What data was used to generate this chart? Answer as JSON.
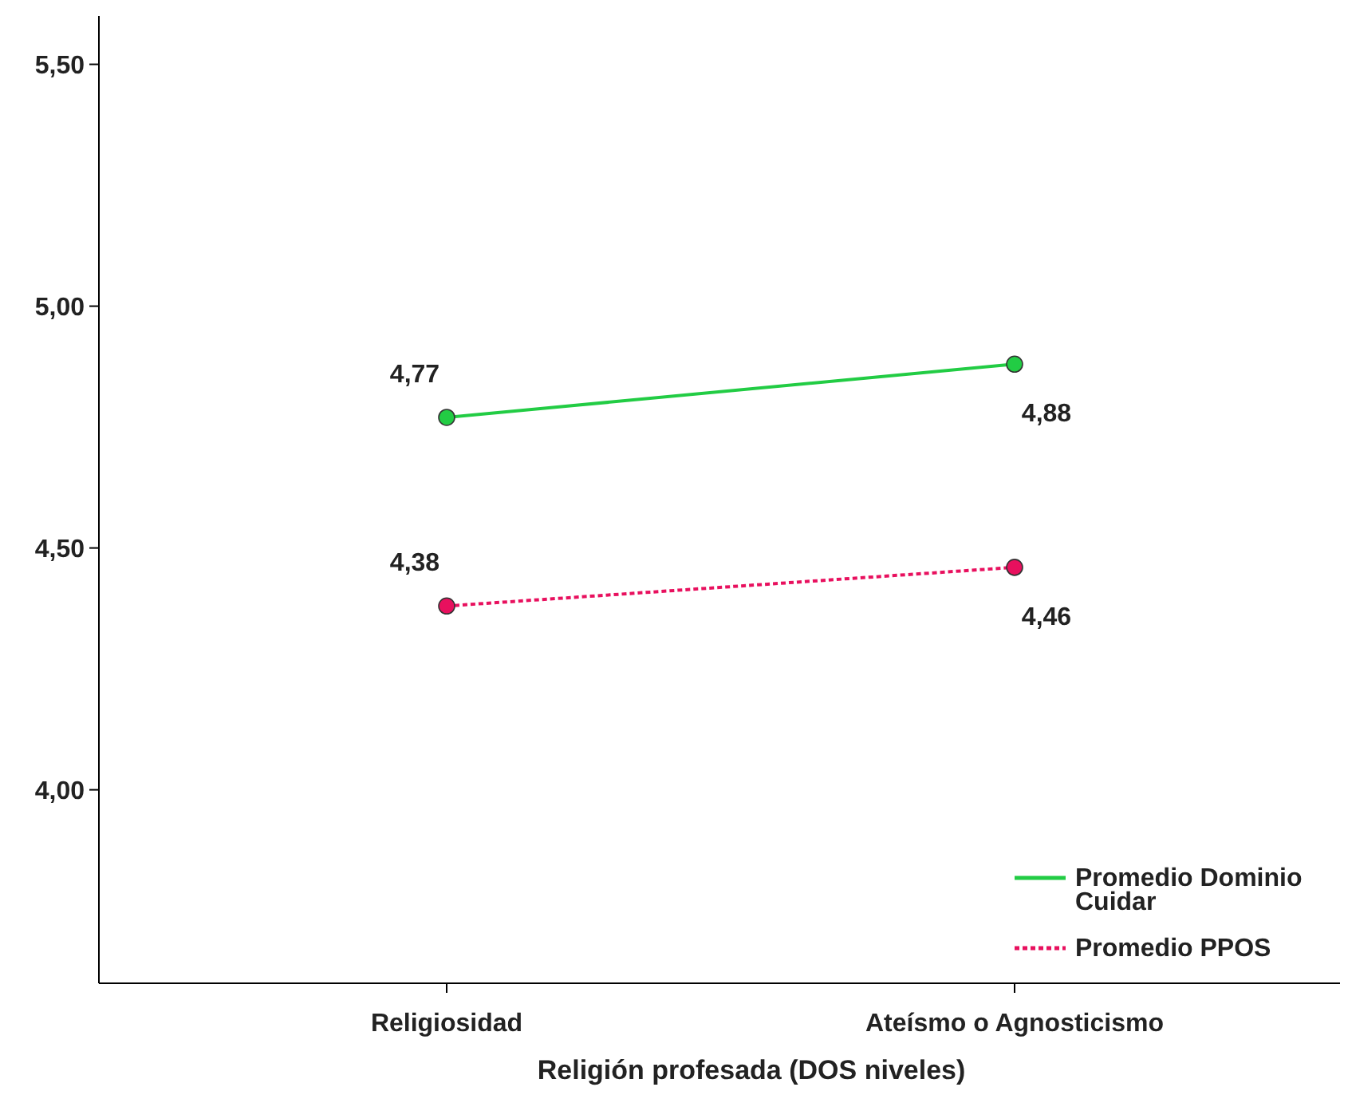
{
  "chart_data": {
    "type": "line",
    "xlabel": "Religión profesada (DOS niveles)",
    "categories": [
      "Religiosidad",
      "Ateísmo o Agnosticismo"
    ],
    "series": [
      {
        "name": "Promedio Dominio Cuidar",
        "color": "#22cc44",
        "values": [
          4.77,
          4.88
        ],
        "value_labels": [
          "4,77",
          "4,88"
        ],
        "line_style": "solid"
      },
      {
        "name": "Promedio PPOS",
        "color": "#e8105e",
        "values": [
          4.38,
          4.46
        ],
        "value_labels": [
          "4,38",
          "4,46"
        ],
        "line_style": "dotted"
      }
    ],
    "ylim": [
      3.6,
      5.6
    ],
    "yticks": [
      {
        "value": 4,
        "label": "4,00"
      },
      {
        "value": 4.5,
        "label": "4,50"
      },
      {
        "value": 5,
        "label": "5,00"
      },
      {
        "value": 5.5,
        "label": "5,50"
      }
    ],
    "marker": "circle",
    "legend": "bottom right",
    "grid": false
  }
}
